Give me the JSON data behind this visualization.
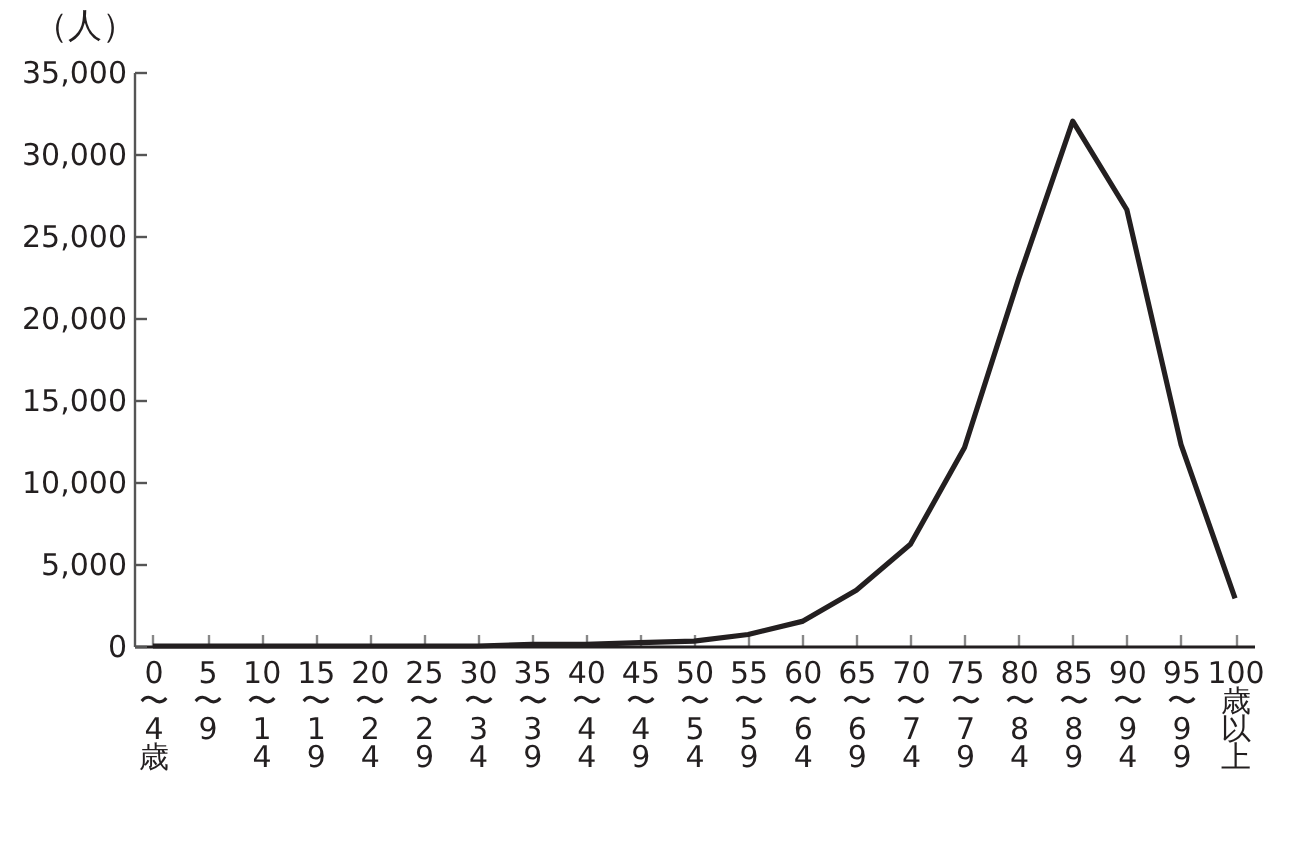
{
  "chart_data": {
    "type": "line",
    "ylabel": "（人）",
    "categories": [
      "0〜4歳",
      "5〜9",
      "10〜14",
      "15〜19",
      "20〜24",
      "25〜29",
      "30〜34",
      "35〜39",
      "40〜44",
      "45〜49",
      "50〜54",
      "55〜59",
      "60〜64",
      "65〜69",
      "70〜74",
      "75〜79",
      "80〜84",
      "85〜89",
      "90〜94",
      "95〜99",
      "100歳以上"
    ],
    "series": [
      {
        "color": "#231f20",
        "values": [
          0,
          0,
          0,
          0,
          0,
          0,
          0,
          100,
          100,
          200,
          300,
          700,
          1500,
          3400,
          6200,
          12100,
          22400,
          32000,
          26600,
          12300,
          2900
        ]
      }
    ],
    "ylim": [
      0,
      35000
    ],
    "yticks": [
      0,
      {
        "value": 5000,
        "label": "5,000"
      },
      {
        "value": 10000,
        "label": "10,000"
      },
      {
        "value": 15000,
        "label": "15,000"
      },
      {
        "value": 20000,
        "label": "20,000"
      },
      {
        "value": 25000,
        "label": "25,000"
      },
      {
        "value": 30000,
        "label": "30,000"
      },
      {
        "value": 35000,
        "label": "35,000"
      }
    ],
    "grid": false,
    "legend": false,
    "marker": "none",
    "line_style": "solid"
  }
}
